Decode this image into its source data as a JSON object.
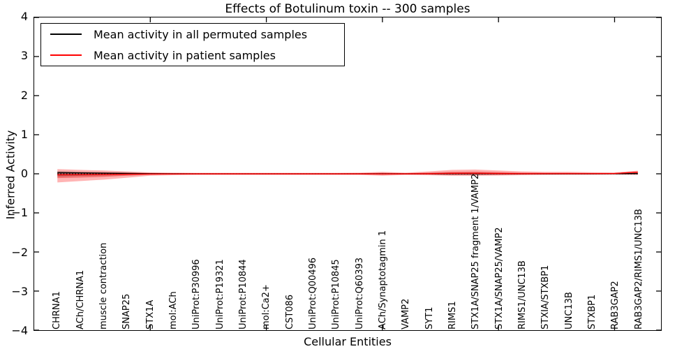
{
  "title": "Effects of Botulinum toxin -- 300 samples",
  "legend": {
    "items": [
      {
        "label": "Mean activity in all permuted samples",
        "color": "#000000"
      },
      {
        "label": "Mean activity in patient samples",
        "color": "#ff0000"
      }
    ]
  },
  "chart_data": {
    "type": "line",
    "title": "Effects of Botulinum toxin -- 300 samples",
    "xlabel": "Cellular Entities",
    "ylabel": "Inferred Activity",
    "ylim": [
      -4,
      4
    ],
    "grid": false,
    "legend_position": "upper-left",
    "ytick_labels": [
      "4",
      "3",
      "2",
      "1",
      "0",
      "−1",
      "−2",
      "−3",
      "−4"
    ],
    "ytick_values": [
      4,
      3,
      2,
      1,
      0,
      -1,
      -2,
      -3,
      -4
    ],
    "major_xtick_indices": [
      4,
      9,
      14,
      19,
      24
    ],
    "categories": [
      "CHRNA1",
      "ACh/CHRNA1",
      "muscle contraction",
      "SNAP25",
      "STX1A",
      "mol:ACh",
      "UniProt:P30996",
      "UniProt:P19321",
      "UniProt:P10844",
      "mol:Ca2+",
      "CST086",
      "UniProt:Q00496",
      "UniProt:P10845",
      "UniProt:Q60393",
      "ACh/Synaptotagmin 1",
      "VAMP2",
      "SYT1",
      "RIMS1",
      "STX1A/SNAP25 fragment 1/VAMP2",
      "STX1A/SNAP25/VAMP2",
      "RIMS1/UNC13B",
      "STXIA/STXBP1",
      "UNC13B",
      "STXBP1",
      "RAB3GAP2",
      "RAB3GAP2/RIMS1/UNC13B"
    ],
    "bands": [
      {
        "name": "patient-band-outer",
        "color": "rgba(255,40,40,0.35)",
        "upper": [
          0.12,
          0.1,
          0.085,
          0.06,
          0.035,
          0.03,
          0.025,
          0.025,
          0.025,
          0.025,
          0.025,
          0.025,
          0.025,
          0.03,
          0.05,
          0.03,
          0.06,
          0.1,
          0.11,
          0.085,
          0.06,
          0.05,
          0.05,
          0.04,
          0.035,
          0.08
        ],
        "lower": [
          -0.22,
          -0.185,
          -0.15,
          -0.1,
          -0.05,
          -0.035,
          -0.03,
          -0.03,
          -0.03,
          -0.03,
          -0.03,
          -0.03,
          -0.03,
          -0.03,
          -0.05,
          -0.03,
          -0.035,
          -0.05,
          -0.05,
          -0.045,
          -0.035,
          -0.03,
          -0.025,
          -0.025,
          -0.02,
          -0.03
        ]
      },
      {
        "name": "patient-band-inner",
        "color": "rgba(230,30,30,0.45)",
        "upper": [
          0.05,
          0.045,
          0.04,
          0.03,
          0.02,
          0.015,
          0.013,
          0.013,
          0.013,
          0.013,
          0.013,
          0.013,
          0.013,
          0.015,
          0.025,
          0.015,
          0.03,
          0.05,
          0.055,
          0.042,
          0.03,
          0.025,
          0.025,
          0.02,
          0.018,
          0.055
        ],
        "lower": [
          -0.11,
          -0.095,
          -0.078,
          -0.05,
          -0.026,
          -0.02,
          -0.015,
          -0.015,
          -0.015,
          -0.015,
          -0.015,
          -0.015,
          -0.015,
          -0.015,
          -0.025,
          -0.015,
          -0.02,
          -0.03,
          -0.03,
          -0.025,
          -0.02,
          -0.016,
          -0.015,
          -0.015,
          -0.012,
          -0.012
        ]
      },
      {
        "name": "permuted-band",
        "color": "rgba(60,60,60,0.30)",
        "upper": [
          0.07,
          0.052,
          0.04,
          0.028,
          0.02,
          0.017,
          0.015,
          0.014,
          0.014,
          0.014,
          0.014,
          0.014,
          0.014,
          0.015,
          0.02,
          0.015,
          0.02,
          0.026,
          0.026,
          0.02,
          0.017,
          0.015,
          0.015,
          0.014,
          0.014,
          0.02
        ],
        "lower": [
          -0.07,
          -0.052,
          -0.04,
          -0.028,
          -0.02,
          -0.017,
          -0.015,
          -0.014,
          -0.014,
          -0.014,
          -0.014,
          -0.014,
          -0.014,
          -0.015,
          -0.02,
          -0.015,
          -0.02,
          -0.026,
          -0.026,
          -0.02,
          -0.017,
          -0.015,
          -0.015,
          -0.014,
          -0.014,
          -0.02
        ]
      }
    ],
    "zero_line": {
      "value": 0,
      "color": "#000000",
      "style": "dotted"
    },
    "series": [
      {
        "name": "Mean activity in all permuted samples",
        "color": "#000000",
        "values": [
          0.028,
          0.022,
          0.016,
          0.01,
          0.004,
          0.001,
          0.0,
          0.0,
          0.0,
          0.0,
          0.0,
          0.0,
          0.0,
          0.0,
          0.002,
          0.0,
          0.002,
          0.008,
          0.008,
          0.004,
          0.002,
          0.001,
          0.001,
          0.001,
          0.002,
          0.008
        ]
      },
      {
        "name": "Mean activity in patient samples",
        "color": "#ff0000",
        "values": [
          -0.028,
          -0.024,
          -0.018,
          -0.01,
          -0.004,
          -0.002,
          -0.001,
          -0.001,
          -0.001,
          -0.001,
          -0.001,
          -0.001,
          -0.001,
          -0.001,
          -0.002,
          -0.001,
          0.003,
          0.012,
          0.014,
          0.008,
          0.005,
          0.004,
          0.004,
          0.004,
          0.008,
          0.042
        ]
      }
    ]
  }
}
